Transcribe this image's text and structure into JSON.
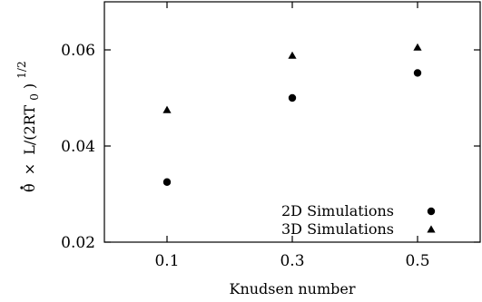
{
  "chart_data": {
    "type": "scatter",
    "xlabel": "Knudsen number",
    "ylabel_parts": {
      "theta": "θ",
      "times_symbol": "×",
      "body": "L/(2RT",
      "subscript": "0",
      "close": ")",
      "superscript": "1/2"
    },
    "xlim": [
      0.0,
      0.6
    ],
    "ylim": [
      0.02,
      0.07
    ],
    "x_ticks": [
      0.1,
      0.3,
      0.5
    ],
    "x_tick_labels": [
      "0.1",
      "0.3",
      "0.5"
    ],
    "y_ticks": [
      0.02,
      0.04,
      0.06
    ],
    "y_tick_labels": [
      "0.02",
      "0.04",
      "0.06"
    ],
    "grid": false,
    "legend_position": "bottom-right",
    "series": [
      {
        "name": "2D Simulations",
        "marker": "circle",
        "color": "#000000",
        "x": [
          0.1,
          0.3,
          0.5
        ],
        "y": [
          0.0325,
          0.05,
          0.0552
        ]
      },
      {
        "name": "3D Simulations",
        "marker": "triangle",
        "color": "#000000",
        "x": [
          0.1,
          0.3,
          0.5
        ],
        "y": [
          0.0475,
          0.0588,
          0.0605
        ]
      }
    ]
  }
}
